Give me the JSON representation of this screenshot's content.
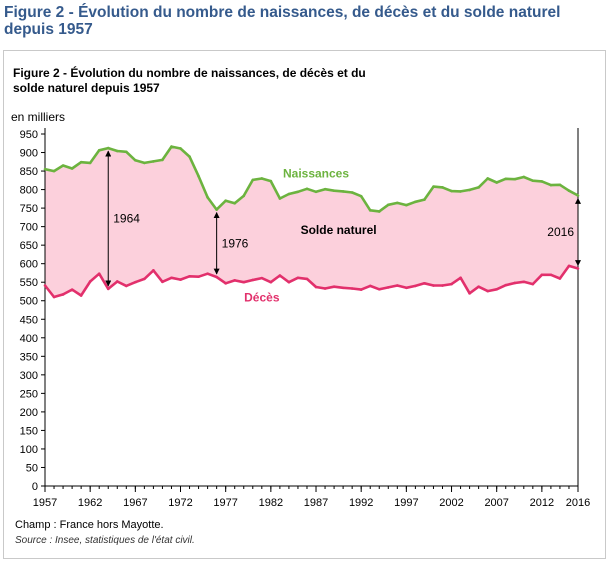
{
  "page_heading": "Figure 2 - Évolution du nombre de naissances, de décès et du solde naturel depuis 1957",
  "footnote": "Champ : France hors Mayotte.",
  "source": "Source : Insee, statistiques de l'état civil.",
  "colors": {
    "heading": "#355a8c",
    "births": "#6cb33f",
    "deaths": "#e2306c",
    "fill": "#fcd0dc"
  },
  "chart_data": {
    "type": "area",
    "title_line1": "Figure 2 - Évolution du nombre de naissances, de décès et du",
    "title_line2": "solde naturel depuis 1957",
    "ylabel": "en milliers",
    "ylim": [
      0,
      950
    ],
    "y_ticks": [
      0,
      50,
      100,
      150,
      200,
      250,
      300,
      350,
      400,
      450,
      500,
      550,
      600,
      650,
      700,
      750,
      800,
      850,
      900,
      950
    ],
    "x_ticks": [
      1957,
      1962,
      1967,
      1972,
      1977,
      1982,
      1987,
      1992,
      1997,
      2002,
      2007,
      2012,
      2016
    ],
    "grid": false,
    "x": [
      1957,
      1958,
      1959,
      1960,
      1961,
      1962,
      1963,
      1964,
      1965,
      1966,
      1967,
      1968,
      1969,
      1970,
      1971,
      1972,
      1973,
      1974,
      1975,
      1976,
      1977,
      1978,
      1979,
      1980,
      1981,
      1982,
      1983,
      1984,
      1985,
      1986,
      1987,
      1988,
      1989,
      1990,
      1991,
      1992,
      1993,
      1994,
      1995,
      1996,
      1997,
      1998,
      1999,
      2000,
      2001,
      2002,
      2003,
      2004,
      2005,
      2006,
      2007,
      2008,
      2009,
      2010,
      2011,
      2012,
      2013,
      2014,
      2015,
      2016
    ],
    "series": [
      {
        "name": "Naissances",
        "values": [
          855,
          850,
          865,
          857,
          874,
          872,
          906,
          912,
          904,
          902,
          879,
          872,
          876,
          880,
          916,
          911,
          889,
          836,
          779,
          746,
          770,
          763,
          783,
          826,
          830,
          823,
          776,
          788,
          794,
          802,
          794,
          801,
          797,
          795,
          792,
          782,
          744,
          741,
          759,
          764,
          758,
          767,
          773,
          808,
          806,
          796,
          795,
          799,
          806,
          830,
          819,
          829,
          828,
          834,
          824,
          822,
          812,
          813,
          797,
          784
        ]
      },
      {
        "name": "Décès",
        "values": [
          541,
          510,
          517,
          530,
          514,
          552,
          573,
          532,
          552,
          540,
          550,
          559,
          582,
          551,
          562,
          557,
          566,
          565,
          573,
          564,
          547,
          555,
          550,
          556,
          561,
          550,
          568,
          550,
          562,
          559,
          537,
          533,
          538,
          535,
          533,
          530,
          540,
          531,
          536,
          541,
          535,
          540,
          547,
          541,
          541,
          545,
          562,
          520,
          538,
          526,
          531,
          542,
          548,
          551,
          545,
          570,
          570,
          560,
          594,
          587
        ]
      }
    ],
    "annotations": [
      {
        "text": "1964",
        "year": 1964
      },
      {
        "text": "1976",
        "year": 1976
      },
      {
        "text": "2016",
        "year": 2016
      },
      {
        "text": "Solde naturel"
      }
    ]
  }
}
